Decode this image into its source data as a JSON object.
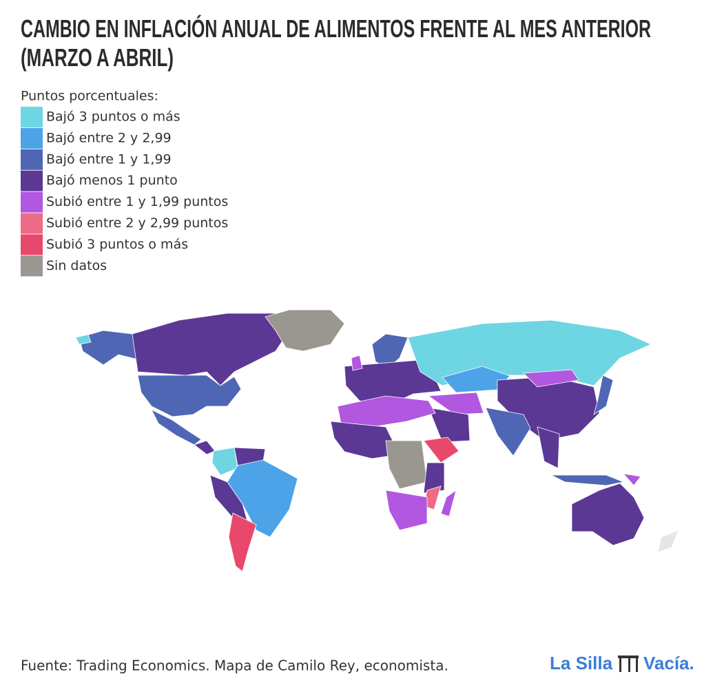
{
  "header": {
    "title_lines": [
      "CAMBIO EN INFLACIÓN ANUAL DE ALIMENTOS FRENTE AL MES ANTERIOR",
      "(MARZO A ABRIL)"
    ]
  },
  "legend": {
    "title": "Puntos porcentuales:",
    "items": [
      {
        "label": "Bajó 3 puntos o más",
        "color": "#6dd6e2"
      },
      {
        "label": "Bajó entre 2 y 2,99",
        "color": "#4ca3e8"
      },
      {
        "label": "Bajó entre 1 y 1,99",
        "color": "#4f66b5"
      },
      {
        "label": "Bajó menos 1 punto",
        "color": "#5b3894"
      },
      {
        "label": "Subió entre 1 y 1,99 puntos",
        "color": "#b157e0"
      },
      {
        "label": "Subió entre 2 y 2,99 puntos",
        "color": "#ee6b87"
      },
      {
        "label": "Subió 3 puntos o más",
        "color": "#e8486b"
      },
      {
        "label": "Sin datos",
        "color": "#9a9690"
      }
    ]
  },
  "footer": {
    "source": "Fuente: Trading Economics. Mapa de Camilo Rey, economista.",
    "logo": [
      "La Silla",
      "Vacía."
    ]
  }
}
